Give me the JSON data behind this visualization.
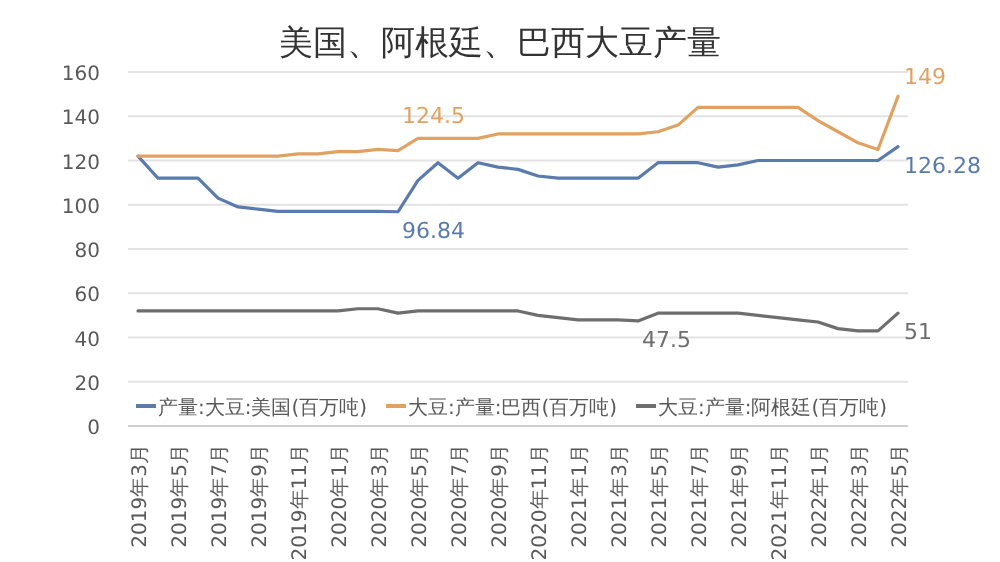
{
  "chart_data": {
    "type": "line",
    "title": "美国、阿根廷、巴西大豆产量",
    "categories": [
      "2019年3月",
      null,
      "2019年5月",
      null,
      "2019年7月",
      null,
      "2019年9月",
      null,
      "2019年11月",
      null,
      "2020年1月",
      null,
      "2020年3月",
      null,
      "2020年5月",
      null,
      "2020年7月",
      null,
      "2020年9月",
      null,
      "2020年11月",
      null,
      "2021年1月",
      null,
      "2021年3月",
      null,
      "2021年5月",
      null,
      "2021年7月",
      null,
      "2021年9月",
      null,
      "2021年11月",
      null,
      "2022年1月",
      null,
      "2022年3月",
      null,
      "2022年5月"
    ],
    "series": [
      {
        "name": "产量:大豆:美国(百万吨)",
        "color": "#5a7bab",
        "values": [
          122,
          112,
          112,
          112,
          103,
          99,
          98,
          97,
          97,
          97,
          97,
          97,
          97,
          96.84,
          111,
          119,
          112,
          119,
          117,
          116,
          113,
          112,
          112,
          112,
          112,
          112,
          119,
          119,
          119,
          117,
          118,
          120,
          120,
          120,
          120,
          120,
          120,
          120,
          126.28
        ],
        "value_labels": [
          null,
          null,
          null,
          null,
          null,
          null,
          null,
          null,
          null,
          null,
          null,
          null,
          null,
          "96.84",
          null,
          null,
          null,
          null,
          null,
          null,
          null,
          null,
          null,
          null,
          null,
          null,
          null,
          null,
          null,
          null,
          null,
          null,
          null,
          null,
          null,
          null,
          null,
          null,
          "126.28"
        ]
      },
      {
        "name": "大豆:产量:巴西(百万吨)",
        "color": "#e0a262",
        "values": [
          122,
          122,
          122,
          122,
          122,
          122,
          122,
          122,
          123,
          123,
          124,
          124,
          125,
          124.5,
          130,
          130,
          130,
          130,
          132,
          132,
          132,
          132,
          132,
          132,
          132,
          132,
          133,
          136,
          144,
          144,
          144,
          144,
          144,
          144,
          138,
          133,
          128,
          125,
          149
        ],
        "value_labels": [
          null,
          null,
          null,
          null,
          null,
          null,
          null,
          null,
          null,
          null,
          null,
          null,
          null,
          "124.5",
          null,
          null,
          null,
          null,
          null,
          null,
          null,
          null,
          null,
          null,
          null,
          null,
          null,
          null,
          null,
          null,
          null,
          null,
          null,
          null,
          null,
          null,
          null,
          null,
          "149"
        ]
      },
      {
        "name": "大豆:产量:阿根廷(百万吨)",
        "color": "#6e6e6e",
        "values": [
          52,
          52,
          52,
          52,
          52,
          52,
          52,
          52,
          52,
          52,
          52,
          53,
          53,
          51,
          52,
          52,
          52,
          52,
          52,
          52,
          50,
          49,
          48,
          48,
          48,
          47.5,
          51,
          51,
          51,
          51,
          51,
          50,
          49,
          48,
          47,
          44,
          43,
          43,
          51
        ],
        "value_labels": [
          null,
          null,
          null,
          null,
          null,
          null,
          null,
          null,
          null,
          null,
          null,
          null,
          null,
          null,
          null,
          null,
          null,
          null,
          null,
          null,
          null,
          null,
          null,
          null,
          null,
          "47.5",
          null,
          null,
          null,
          null,
          null,
          null,
          null,
          null,
          null,
          null,
          null,
          null,
          "51"
        ]
      }
    ],
    "ylim": [
      0,
      160
    ],
    "yticks": [
      0,
      20,
      40,
      60,
      80,
      100,
      120,
      140,
      160
    ],
    "grid": "y",
    "legend": "bottom"
  }
}
